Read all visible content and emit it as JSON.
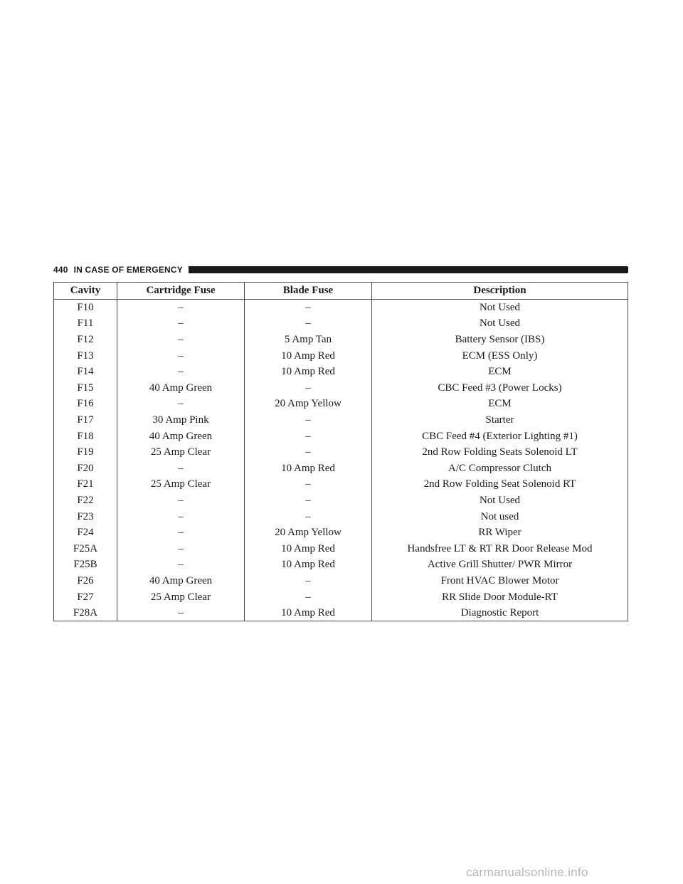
{
  "header": {
    "page_number": "440",
    "section_title": "IN CASE OF EMERGENCY"
  },
  "table": {
    "columns": [
      "Cavity",
      "Cartridge Fuse",
      "Blade Fuse",
      "Description"
    ],
    "rows": [
      [
        "F10",
        "–",
        "–",
        "Not Used"
      ],
      [
        "F11",
        "–",
        "–",
        "Not Used"
      ],
      [
        "F12",
        "–",
        "5 Amp Tan",
        "Battery Sensor (IBS)"
      ],
      [
        "F13",
        "–",
        "10 Amp Red",
        "ECM (ESS Only)"
      ],
      [
        "F14",
        "–",
        "10 Amp Red",
        "ECM"
      ],
      [
        "F15",
        "40 Amp Green",
        "–",
        "CBC Feed #3 (Power Locks)"
      ],
      [
        "F16",
        "–",
        "20 Amp Yellow",
        "ECM"
      ],
      [
        "F17",
        "30 Amp Pink",
        "–",
        "Starter"
      ],
      [
        "F18",
        "40 Amp Green",
        "–",
        "CBC Feed #4 (Exterior Lighting #1)"
      ],
      [
        "F19",
        "25 Amp Clear",
        "–",
        "2nd Row Folding Seats Solenoid LT"
      ],
      [
        "F20",
        "–",
        "10 Amp Red",
        "A/C Compressor Clutch"
      ],
      [
        "F21",
        "25 Amp Clear",
        "–",
        "2nd Row Folding Seat Solenoid RT"
      ],
      [
        "F22",
        "–",
        "–",
        "Not Used"
      ],
      [
        "F23",
        "–",
        "–",
        "Not used"
      ],
      [
        "F24",
        "–",
        "20 Amp Yellow",
        "RR Wiper"
      ],
      [
        "F25A",
        "–",
        "10 Amp Red",
        "Handsfree LT & RT RR Door Release Mod"
      ],
      [
        "F25B",
        "–",
        "10 Amp Red",
        "Active Grill Shutter/ PWR Mirror"
      ],
      [
        "F26",
        "40 Amp Green",
        "–",
        "Front HVAC Blower Motor"
      ],
      [
        "F27",
        "25 Amp Clear",
        "–",
        "RR Slide Door Module-RT"
      ],
      [
        "F28A",
        "–",
        "10 Amp Red",
        "Diagnostic Report"
      ]
    ]
  },
  "watermark": "carmanualsonline.info"
}
